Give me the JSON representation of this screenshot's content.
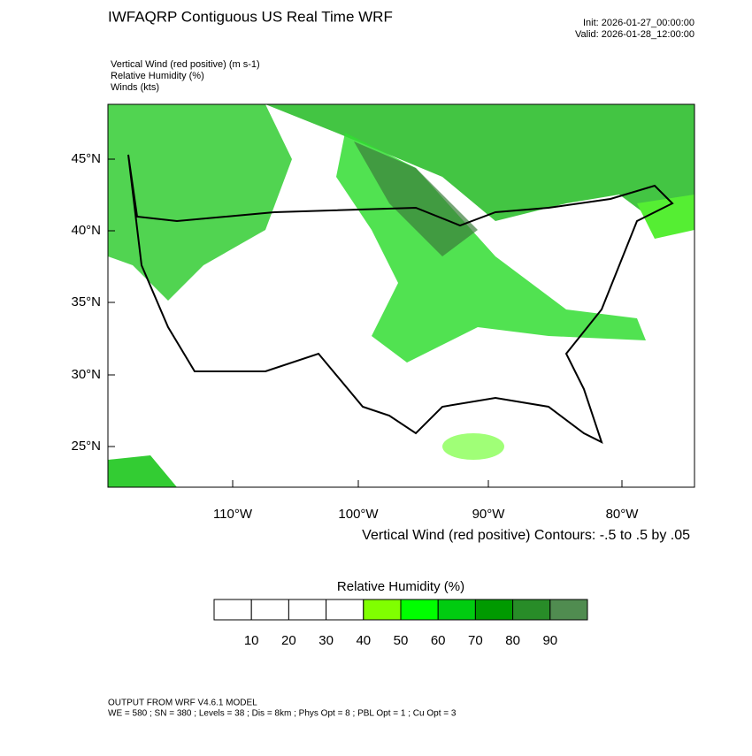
{
  "header": {
    "title": "IWFAQRP Contiguous US Real Time WRF",
    "init": "Init: 2026-01-27_00:00:00",
    "valid": "Valid: 2026-01-28_12:00:00",
    "fields": [
      "Vertical Wind (red positive)   (m s-1)",
      "Relative Humidity   (%)",
      "Winds   (kts)"
    ]
  },
  "map": {
    "lat_labels": [
      "45°N",
      "40°N",
      "35°N",
      "30°N",
      "25°N"
    ],
    "lon_labels": [
      "110°W",
      "100°W",
      "90°W",
      "80°W"
    ],
    "contour_note": "Vertical Wind (red positive) Contours: -.5 to .5 by .05"
  },
  "colorbar": {
    "title": "Relative Humidity  (%)",
    "colors": [
      "#ffffff",
      "#ffffff",
      "#ffffff",
      "#ffffff",
      "#80ff00",
      "#00ff00",
      "#00cc10",
      "#009a00",
      "#288c28",
      "#508c50"
    ],
    "labels": [
      "10",
      "20",
      "30",
      "40",
      "50",
      "60",
      "70",
      "80",
      "90"
    ]
  },
  "footer": {
    "model": "OUTPUT FROM WRF V4.6.1 MODEL",
    "config": "WE = 580 ; SN = 380 ; Levels = 38 ; Dis = 8km ; Phys Opt = 8 ; PBL Opt = 1 ; Cu Opt = 3"
  }
}
